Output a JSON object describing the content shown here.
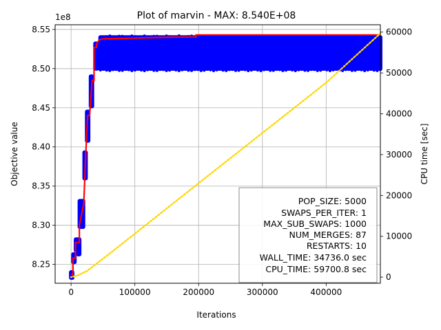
{
  "chart_data": {
    "type": "line",
    "title": "Plot of marvin - MAX: 8.540E+08",
    "xlabel": "Iterations",
    "ylabel": "Objective value",
    "y2label": "CPU time [sec]",
    "y_offset_label": "1e8",
    "xlim": [
      -25000,
      485000
    ],
    "ylim": [
      8.226,
      8.556
    ],
    "y2lim": [
      -1500,
      61800
    ],
    "grid": true,
    "x_ticks": [
      0,
      100000,
      200000,
      300000,
      400000
    ],
    "x_tick_labels": [
      "0",
      "100000",
      "200000",
      "300000",
      "400000"
    ],
    "y_ticks": [
      8.25,
      8.3,
      8.35,
      8.4,
      8.45,
      8.5,
      8.55
    ],
    "y_tick_labels": [
      "8.25",
      "8.30",
      "8.35",
      "8.40",
      "8.45",
      "8.50",
      "8.55"
    ],
    "y2_ticks": [
      0,
      10000,
      20000,
      30000,
      40000,
      50000,
      60000
    ],
    "y2_tick_labels": [
      "0",
      "10000",
      "20000",
      "30000",
      "40000",
      "50000",
      "60000"
    ],
    "series": [
      {
        "color": "#0000ff",
        "axis": "left",
        "kind": "scatter-band",
        "bands": [
          {
            "x": [
              0,
              2000
            ],
            "y": [
              8.233,
              8.24
            ]
          },
          {
            "x": [
              3500,
              5500
            ],
            "y": [
              8.253,
              8.263
            ]
          },
          {
            "x": [
              7500,
              9500
            ],
            "y": [
              8.268,
              8.282
            ]
          },
          {
            "x": [
              11000,
              13000
            ],
            "y": [
              8.263,
              8.282
            ]
          },
          {
            "x": [
              13500,
              15500
            ],
            "y": [
              8.298,
              8.331
            ]
          },
          {
            "x": [
              17000,
              19000
            ],
            "y": [
              8.298,
              8.331
            ]
          },
          {
            "x": [
              21000,
              23000
            ],
            "y": [
              8.36,
              8.393
            ]
          },
          {
            "x": [
              25000,
              27000
            ],
            "y": [
              8.408,
              8.445
            ]
          },
          {
            "x": [
              31000,
              33000
            ],
            "y": [
              8.452,
              8.49
            ]
          },
          {
            "x": [
              38000,
              41000
            ],
            "y": [
              8.5,
              8.532
            ]
          },
          {
            "x": [
              46000,
              485000
            ],
            "y": [
              8.5,
              8.54
            ]
          }
        ]
      },
      {
        "color": "#ff0000",
        "axis": "left",
        "x": [
          0,
          3000,
          3000,
          7000,
          7000,
          13000,
          13000,
          20000,
          23000,
          26000,
          29000,
          33000,
          36000,
          36000,
          40000,
          40000,
          45000,
          50000,
          100000,
          150000,
          196000,
          196000,
          485000
        ],
        "y": [
          8.237,
          8.237,
          8.258,
          8.258,
          8.278,
          8.278,
          8.3,
          8.328,
          8.39,
          8.44,
          8.44,
          8.485,
          8.485,
          8.527,
          8.527,
          8.532,
          8.537,
          8.538,
          8.539,
          8.54,
          8.5405,
          8.543,
          8.543
        ]
      },
      {
        "color": "#ffd700",
        "axis": "right",
        "x": [
          0,
          10000,
          25000,
          60000,
          120000,
          200000,
          300000,
          400000,
          485000
        ],
        "y": [
          0,
          400,
          1500,
          5700,
          13100,
          23000,
          35300,
          47600,
          59700
        ]
      }
    ],
    "stats_box": {
      "placement": "bottom-right",
      "lines": [
        "POP_SIZE: 5000",
        "SWAPS_PER_ITER: 1",
        "MAX_SUB_SWAPS: 1000",
        "NUM_MERGES: 87",
        "RESTARTS: 10",
        "WALL_TIME: 34736.0 sec",
        "CPU_TIME: 59700.8 sec"
      ]
    }
  }
}
